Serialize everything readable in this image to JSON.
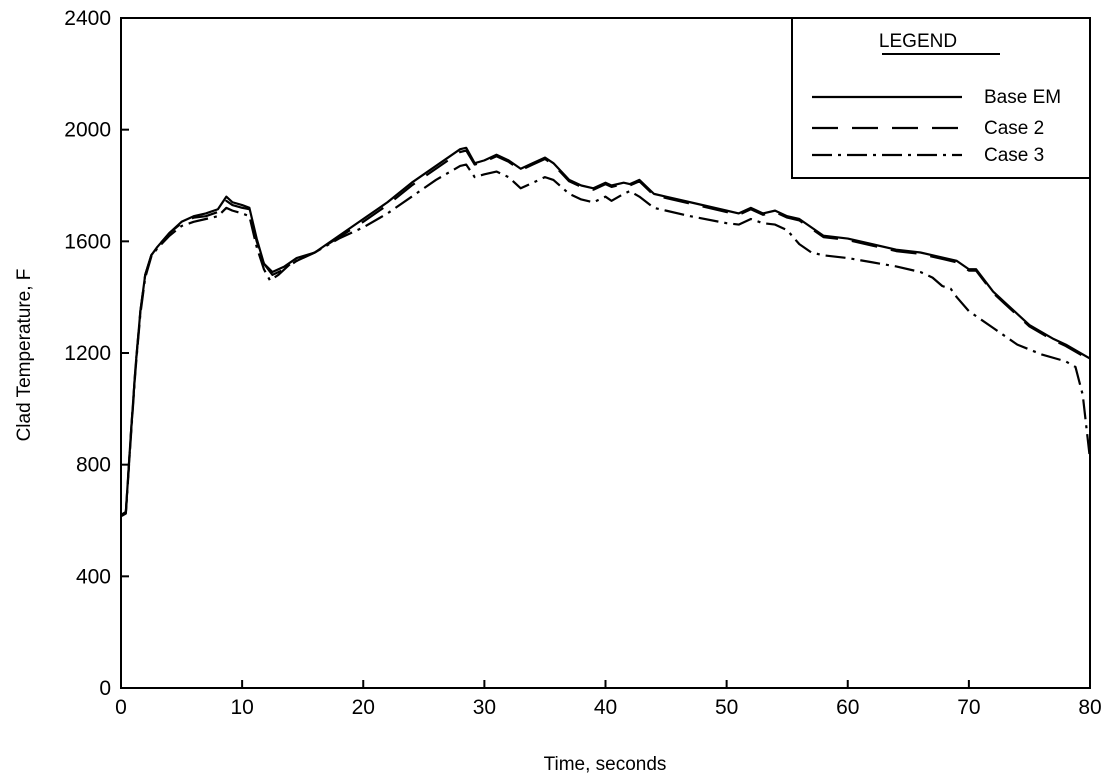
{
  "chart_data": {
    "type": "line",
    "title": "",
    "xlabel": "Time, seconds",
    "ylabel": "Clad Temperature, F",
    "xlim": [
      0,
      80
    ],
    "ylim": [
      0,
      2400
    ],
    "x_ticks": [
      0,
      10,
      20,
      30,
      40,
      50,
      60,
      70,
      80
    ],
    "y_ticks": [
      0,
      400,
      800,
      1200,
      1600,
      2000,
      2400
    ],
    "grid": false,
    "legend": {
      "title": "LEGEND",
      "placement": "top-right",
      "entries": [
        "Base EM",
        "Case 2",
        "Case 3"
      ]
    },
    "series": [
      {
        "name": "Base EM",
        "style": "solid",
        "points": [
          [
            0,
            620
          ],
          [
            0.4,
            630
          ],
          [
            0.8,
            900
          ],
          [
            1.2,
            1150
          ],
          [
            1.6,
            1350
          ],
          [
            2,
            1480
          ],
          [
            2.5,
            1550
          ],
          [
            3,
            1580
          ],
          [
            4,
            1630
          ],
          [
            5,
            1670
          ],
          [
            6,
            1690
          ],
          [
            7,
            1700
          ],
          [
            8,
            1715
          ],
          [
            8.7,
            1760
          ],
          [
            9.2,
            1740
          ],
          [
            10,
            1730
          ],
          [
            10.6,
            1720
          ],
          [
            11.2,
            1610
          ],
          [
            11.8,
            1520
          ],
          [
            12.5,
            1490
          ],
          [
            13.5,
            1510
          ],
          [
            14.5,
            1540
          ],
          [
            16,
            1560
          ],
          [
            18,
            1620
          ],
          [
            20,
            1680
          ],
          [
            22,
            1740
          ],
          [
            24,
            1810
          ],
          [
            26,
            1870
          ],
          [
            27,
            1900
          ],
          [
            28,
            1930
          ],
          [
            28.5,
            1935
          ],
          [
            29.2,
            1880
          ],
          [
            30,
            1890
          ],
          [
            31,
            1910
          ],
          [
            32,
            1890
          ],
          [
            33,
            1860
          ],
          [
            34,
            1880
          ],
          [
            35,
            1900
          ],
          [
            35.7,
            1880
          ],
          [
            37,
            1820
          ],
          [
            38,
            1800
          ],
          [
            39,
            1790
          ],
          [
            40,
            1810
          ],
          [
            40.5,
            1800
          ],
          [
            41.5,
            1810
          ],
          [
            42,
            1805
          ],
          [
            42.8,
            1820
          ],
          [
            44,
            1770
          ],
          [
            45,
            1760
          ],
          [
            47,
            1740
          ],
          [
            50,
            1710
          ],
          [
            51,
            1700
          ],
          [
            52,
            1720
          ],
          [
            53,
            1700
          ],
          [
            54,
            1710
          ],
          [
            55,
            1690
          ],
          [
            56,
            1680
          ],
          [
            57,
            1650
          ],
          [
            58,
            1620
          ],
          [
            60,
            1610
          ],
          [
            62,
            1590
          ],
          [
            64,
            1570
          ],
          [
            66,
            1560
          ],
          [
            68,
            1540
          ],
          [
            69,
            1530
          ],
          [
            70,
            1500
          ],
          [
            70.6,
            1500
          ],
          [
            72,
            1420
          ],
          [
            73,
            1380
          ],
          [
            75,
            1300
          ],
          [
            77,
            1250
          ],
          [
            78,
            1230
          ],
          [
            80,
            1180
          ]
        ]
      },
      {
        "name": "Case 2",
        "style": "dashed",
        "points": [
          [
            0,
            620
          ],
          [
            0.4,
            630
          ],
          [
            0.8,
            900
          ],
          [
            1.2,
            1150
          ],
          [
            1.6,
            1350
          ],
          [
            2,
            1480
          ],
          [
            2.5,
            1550
          ],
          [
            3,
            1580
          ],
          [
            4,
            1630
          ],
          [
            5,
            1665
          ],
          [
            6,
            1685
          ],
          [
            7,
            1690
          ],
          [
            8,
            1705
          ],
          [
            8.7,
            1745
          ],
          [
            9.2,
            1730
          ],
          [
            10,
            1720
          ],
          [
            10.6,
            1715
          ],
          [
            11.2,
            1600
          ],
          [
            11.8,
            1520
          ],
          [
            12.5,
            1480
          ],
          [
            13.5,
            1500
          ],
          [
            14.5,
            1530
          ],
          [
            16,
            1560
          ],
          [
            18,
            1615
          ],
          [
            20,
            1670
          ],
          [
            22,
            1730
          ],
          [
            24,
            1800
          ],
          [
            26,
            1860
          ],
          [
            27,
            1890
          ],
          [
            28,
            1920
          ],
          [
            28.5,
            1925
          ],
          [
            29.2,
            1875
          ],
          [
            30,
            1885
          ],
          [
            31,
            1905
          ],
          [
            32,
            1885
          ],
          [
            33,
            1855
          ],
          [
            34,
            1875
          ],
          [
            35,
            1895
          ],
          [
            35.7,
            1875
          ],
          [
            37,
            1815
          ],
          [
            38,
            1795
          ],
          [
            39,
            1785
          ],
          [
            40,
            1805
          ],
          [
            40.5,
            1795
          ],
          [
            41.5,
            1805
          ],
          [
            42,
            1800
          ],
          [
            42.8,
            1815
          ],
          [
            44,
            1765
          ],
          [
            45,
            1755
          ],
          [
            47,
            1735
          ],
          [
            50,
            1705
          ],
          [
            51,
            1695
          ],
          [
            52,
            1715
          ],
          [
            53,
            1695
          ],
          [
            54,
            1705
          ],
          [
            55,
            1685
          ],
          [
            56,
            1675
          ],
          [
            57,
            1645
          ],
          [
            58,
            1615
          ],
          [
            60,
            1605
          ],
          [
            62,
            1585
          ],
          [
            64,
            1565
          ],
          [
            66,
            1555
          ],
          [
            68,
            1535
          ],
          [
            69,
            1525
          ],
          [
            70,
            1495
          ],
          [
            70.6,
            1495
          ],
          [
            72,
            1415
          ],
          [
            73,
            1375
          ],
          [
            75,
            1295
          ],
          [
            77,
            1245
          ],
          [
            78,
            1225
          ],
          [
            80,
            1175
          ]
        ]
      },
      {
        "name": "Case 3",
        "style": "dash-dot",
        "points": [
          [
            0,
            615
          ],
          [
            0.4,
            625
          ],
          [
            0.8,
            890
          ],
          [
            1.2,
            1140
          ],
          [
            1.6,
            1340
          ],
          [
            2,
            1470
          ],
          [
            2.5,
            1545
          ],
          [
            3,
            1575
          ],
          [
            4,
            1620
          ],
          [
            5,
            1655
          ],
          [
            6,
            1670
          ],
          [
            7,
            1680
          ],
          [
            8,
            1690
          ],
          [
            8.7,
            1720
          ],
          [
            9.2,
            1710
          ],
          [
            10,
            1700
          ],
          [
            10.6,
            1690
          ],
          [
            11.2,
            1580
          ],
          [
            11.8,
            1500
          ],
          [
            12.3,
            1460
          ],
          [
            13,
            1480
          ],
          [
            14,
            1520
          ],
          [
            16,
            1560
          ],
          [
            18,
            1610
          ],
          [
            20,
            1650
          ],
          [
            22,
            1700
          ],
          [
            24,
            1760
          ],
          [
            26,
            1820
          ],
          [
            27,
            1845
          ],
          [
            28,
            1870
          ],
          [
            28.5,
            1875
          ],
          [
            29.2,
            1830
          ],
          [
            30,
            1840
          ],
          [
            31,
            1850
          ],
          [
            32,
            1830
          ],
          [
            33,
            1790
          ],
          [
            34,
            1810
          ],
          [
            35,
            1830
          ],
          [
            35.7,
            1820
          ],
          [
            37,
            1770
          ],
          [
            38,
            1750
          ],
          [
            39,
            1740
          ],
          [
            40,
            1760
          ],
          [
            40.5,
            1745
          ],
          [
            41.5,
            1770
          ],
          [
            42,
            1780
          ],
          [
            42.8,
            1760
          ],
          [
            44,
            1720
          ],
          [
            45,
            1710
          ],
          [
            47,
            1690
          ],
          [
            50,
            1665
          ],
          [
            51,
            1660
          ],
          [
            52,
            1680
          ],
          [
            53,
            1665
          ],
          [
            54,
            1660
          ],
          [
            55,
            1640
          ],
          [
            56,
            1590
          ],
          [
            57,
            1560
          ],
          [
            58,
            1550
          ],
          [
            60,
            1540
          ],
          [
            62,
            1525
          ],
          [
            64,
            1510
          ],
          [
            66,
            1490
          ],
          [
            67,
            1470
          ],
          [
            67.8,
            1440
          ],
          [
            68.5,
            1430
          ],
          [
            69,
            1400
          ],
          [
            70,
            1350
          ],
          [
            72,
            1290
          ],
          [
            74,
            1230
          ],
          [
            76,
            1195
          ],
          [
            78,
            1170
          ],
          [
            78.8,
            1150
          ],
          [
            79.4,
            1050
          ],
          [
            80,
            820
          ]
        ]
      }
    ]
  }
}
